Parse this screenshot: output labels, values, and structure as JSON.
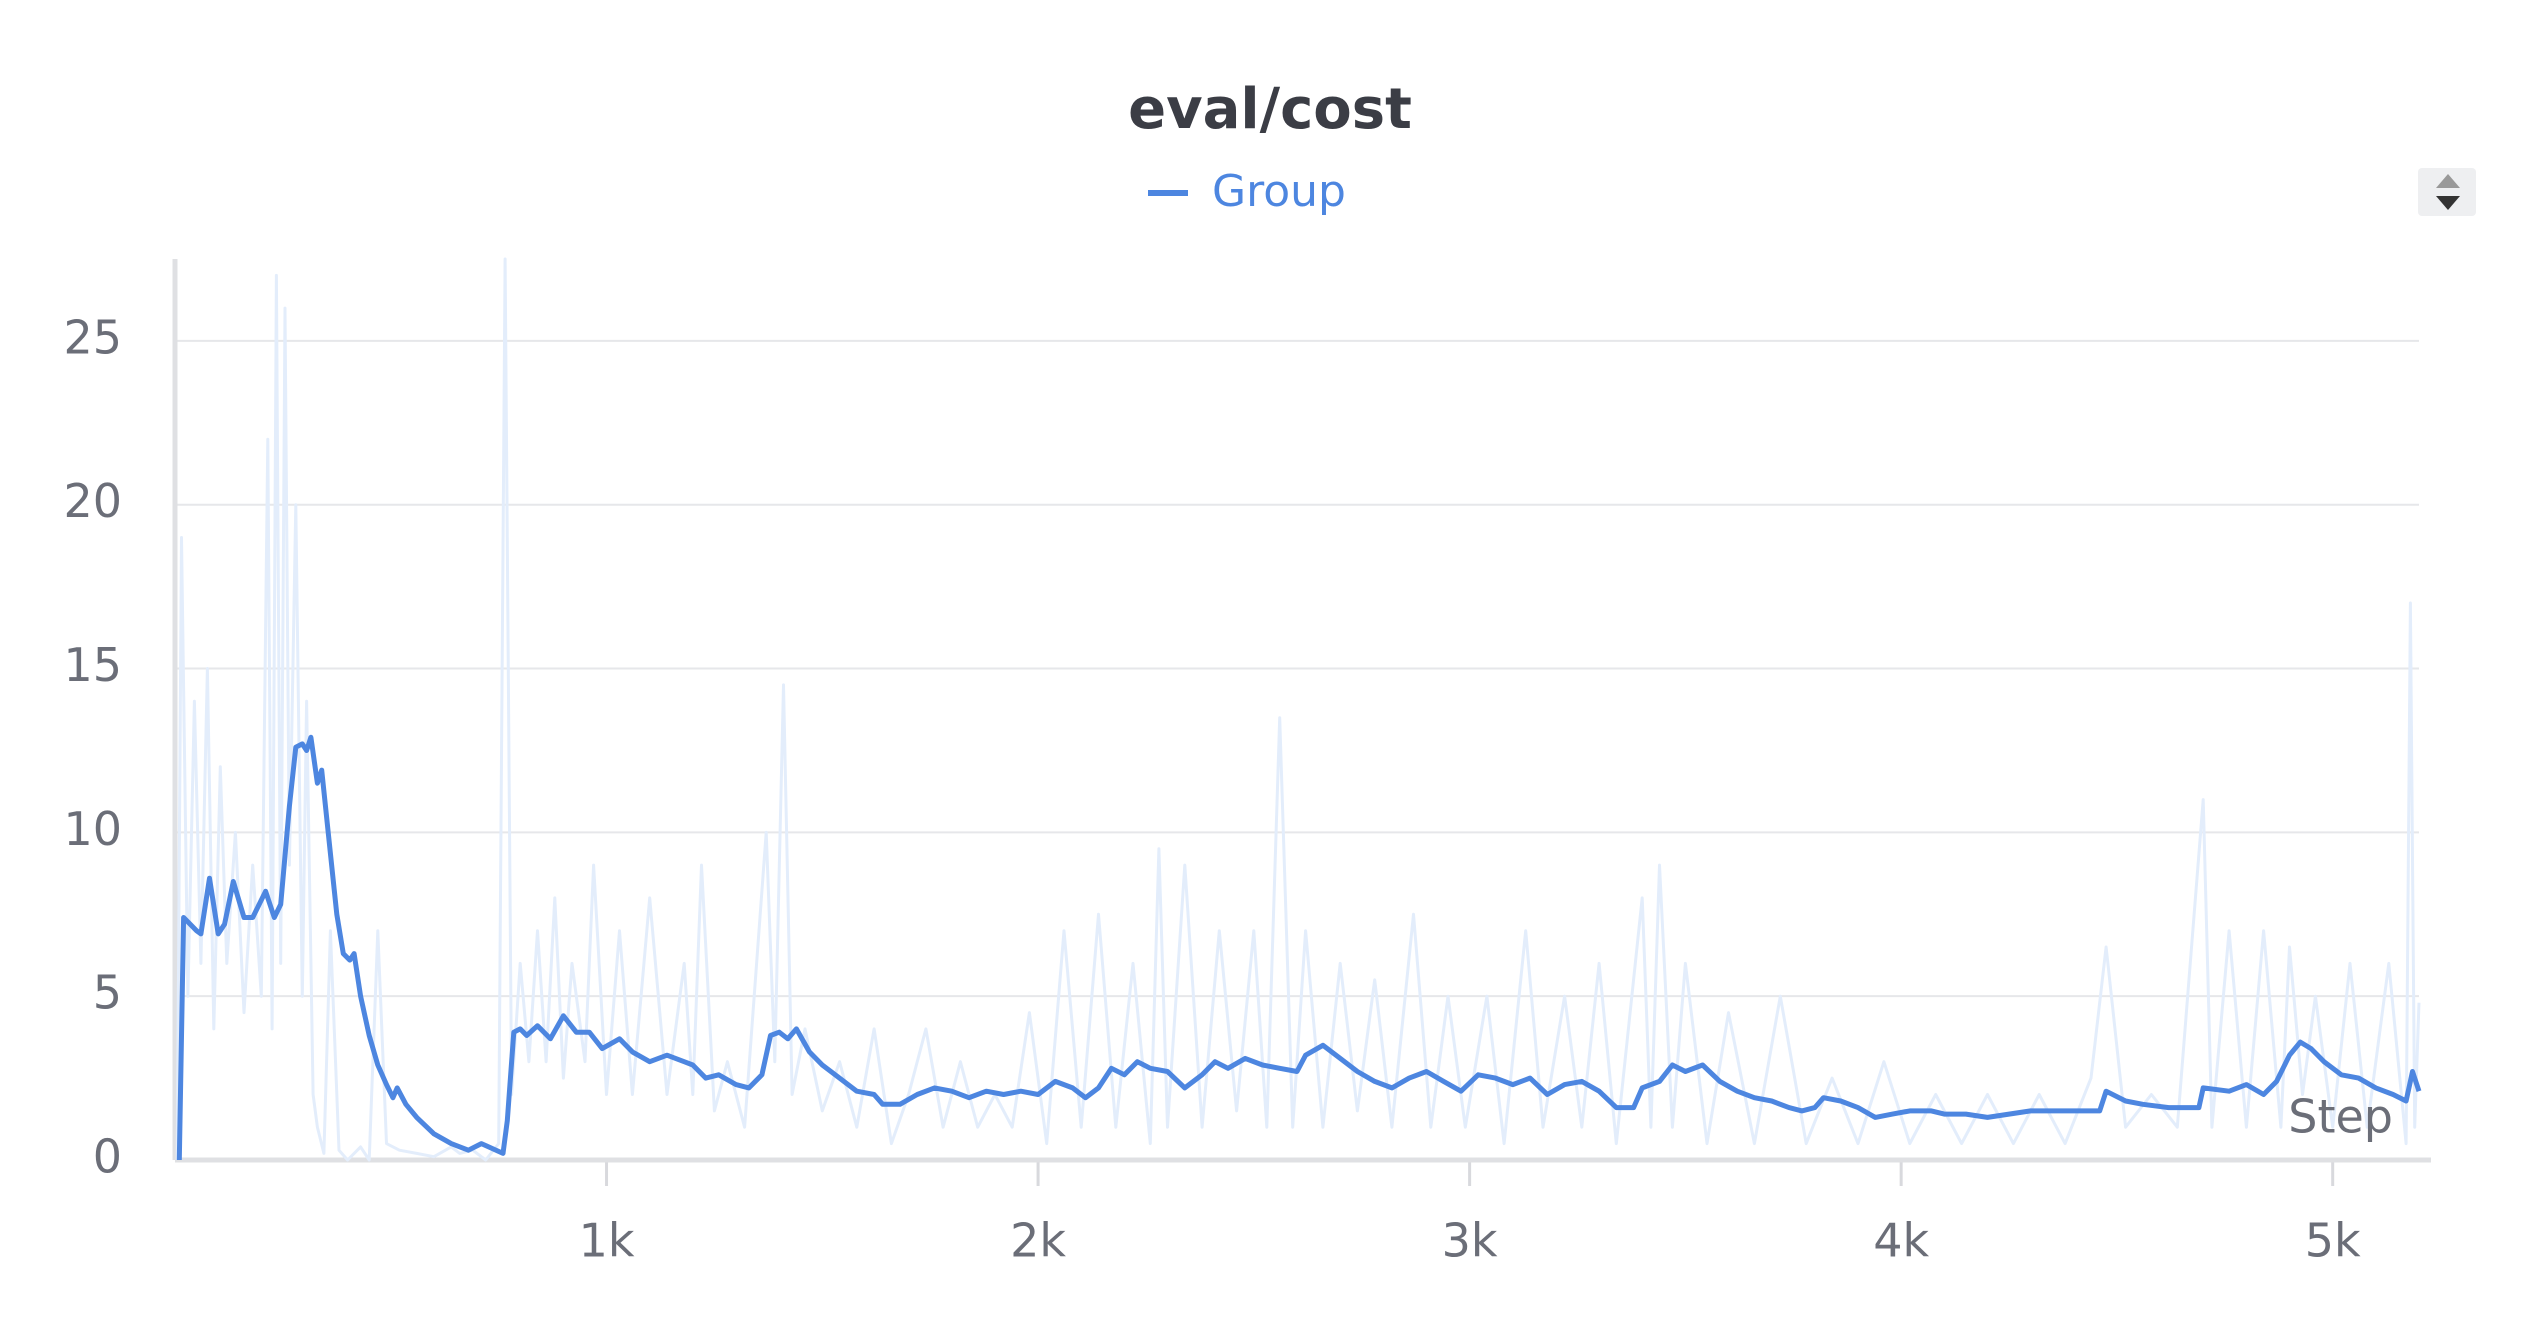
{
  "chart_data": {
    "type": "line",
    "title": "eval/cost",
    "xlabel": "Step",
    "xlim": [
      0,
      5200
    ],
    "ylim": [
      0,
      27.5
    ],
    "xticks": [
      {
        "value": 1000,
        "label": "1k"
      },
      {
        "value": 2000,
        "label": "2k"
      },
      {
        "value": 3000,
        "label": "3k"
      },
      {
        "value": 4000,
        "label": "4k"
      },
      {
        "value": 5000,
        "label": "5k"
      }
    ],
    "yticks": [
      0,
      5,
      10,
      15,
      20,
      25
    ],
    "grid": true,
    "series": [
      {
        "color": "#e3edfb",
        "x": [
          5,
          15,
          30,
          45,
          60,
          75,
          90,
          105,
          120,
          140,
          160,
          180,
          200,
          215,
          225,
          235,
          245,
          255,
          265,
          280,
          295,
          305,
          320,
          330,
          345,
          360,
          380,
          400,
          430,
          450,
          470,
          490,
          520,
          560,
          600,
          640,
          660,
          690,
          720,
          750,
          765,
          780,
          800,
          820,
          840,
          860,
          880,
          900,
          920,
          950,
          970,
          1000,
          1030,
          1060,
          1100,
          1140,
          1180,
          1200,
          1220,
          1250,
          1280,
          1320,
          1370,
          1390,
          1410,
          1430,
          1460,
          1500,
          1540,
          1580,
          1620,
          1660,
          1700,
          1740,
          1780,
          1820,
          1860,
          1900,
          1940,
          1980,
          2020,
          2060,
          2100,
          2140,
          2180,
          2220,
          2260,
          2280,
          2300,
          2340,
          2380,
          2420,
          2460,
          2500,
          2530,
          2560,
          2590,
          2620,
          2660,
          2700,
          2740,
          2780,
          2820,
          2870,
          2910,
          2950,
          2990,
          3040,
          3080,
          3130,
          3170,
          3220,
          3260,
          3300,
          3340,
          3400,
          3420,
          3440,
          3470,
          3500,
          3550,
          3600,
          3660,
          3720,
          3780,
          3840,
          3900,
          3960,
          4020,
          4080,
          4140,
          4200,
          4260,
          4320,
          4380,
          4440,
          4475,
          4520,
          4580,
          4640,
          4700,
          4720,
          4760,
          4800,
          4840,
          4880,
          4900,
          4930,
          4960,
          5000,
          5040,
          5080,
          5130,
          5170,
          5180,
          5190,
          5200
        ],
        "values": [
          0,
          19,
          5,
          14,
          6,
          15,
          4,
          12,
          6,
          10,
          4.5,
          9,
          5,
          22,
          4,
          27,
          6,
          26,
          9,
          20,
          5,
          14,
          2,
          1,
          0.2,
          7,
          0.3,
          0,
          0.4,
          0,
          7,
          0.5,
          0.3,
          0.2,
          0.1,
          0.4,
          0.2,
          0.3,
          0,
          0.5,
          27.5,
          2,
          6,
          3,
          7,
          3,
          8,
          2.5,
          6,
          3,
          9,
          2,
          7,
          2,
          8,
          2,
          6,
          2,
          9,
          1.5,
          3,
          1,
          10,
          3,
          14.5,
          2,
          4,
          1.5,
          3,
          1,
          4,
          0.5,
          2,
          4,
          1,
          3,
          1,
          2,
          1,
          4.5,
          0.5,
          7,
          1,
          7.5,
          1,
          6,
          0.5,
          9.5,
          1,
          9,
          1,
          7,
          1.5,
          7,
          1,
          13.5,
          1,
          7,
          1,
          6,
          1.5,
          5.5,
          1,
          7.5,
          1,
          5,
          1,
          5,
          0.5,
          7,
          1,
          5,
          1,
          6,
          0.5,
          8,
          1,
          9,
          1,
          6,
          0.5,
          4.5,
          0.5,
          5,
          0.5,
          2.5,
          0.5,
          3,
          0.5,
          2,
          0.5,
          2,
          0.5,
          2,
          0.5,
          2.5,
          6.5,
          1,
          2,
          1,
          11,
          1,
          7,
          1,
          7,
          1,
          6.5,
          2,
          5,
          1,
          6,
          1,
          6,
          0.5,
          17,
          1,
          4.8
        ]
      },
      {
        "name": "Group",
        "color": "#4d86e0",
        "x": [
          10,
          20,
          50,
          60,
          80,
          100,
          115,
          135,
          160,
          180,
          210,
          230,
          245,
          265,
          280,
          295,
          305,
          315,
          330,
          340,
          355,
          375,
          390,
          405,
          415,
          430,
          450,
          470,
          490,
          505,
          515,
          535,
          560,
          600,
          640,
          680,
          710,
          760,
          770,
          785,
          800,
          815,
          840,
          870,
          900,
          930,
          960,
          990,
          1030,
          1060,
          1100,
          1140,
          1180,
          1200,
          1230,
          1260,
          1300,
          1330,
          1360,
          1380,
          1400,
          1420,
          1440,
          1470,
          1500,
          1540,
          1580,
          1620,
          1640,
          1680,
          1720,
          1760,
          1800,
          1840,
          1880,
          1920,
          1960,
          2000,
          2040,
          2080,
          2110,
          2140,
          2170,
          2200,
          2230,
          2260,
          2300,
          2340,
          2380,
          2410,
          2440,
          2480,
          2520,
          2560,
          2600,
          2620,
          2660,
          2700,
          2740,
          2780,
          2820,
          2860,
          2900,
          2940,
          2980,
          3020,
          3060,
          3100,
          3140,
          3180,
          3220,
          3260,
          3300,
          3340,
          3380,
          3400,
          3440,
          3470,
          3500,
          3540,
          3580,
          3620,
          3660,
          3700,
          3740,
          3770,
          3800,
          3820,
          3860,
          3900,
          3940,
          3980,
          4020,
          4070,
          4100,
          4150,
          4200,
          4250,
          4300,
          4350,
          4400,
          4460,
          4475,
          4520,
          4560,
          4620,
          4690,
          4700,
          4760,
          4800,
          4840,
          4870,
          4900,
          4925,
          4950,
          4980,
          5020,
          5060,
          5100,
          5140,
          5170,
          5185,
          5200
        ],
        "values": [
          0,
          7.4,
          7,
          6.9,
          8.6,
          6.9,
          7.2,
          8.5,
          7.4,
          7.4,
          8.2,
          7.4,
          7.8,
          10.8,
          12.6,
          12.7,
          12.5,
          12.9,
          11.5,
          11.9,
          10,
          7.5,
          6.3,
          6.1,
          6.3,
          5,
          3.8,
          2.9,
          2.3,
          1.9,
          2.2,
          1.7,
          1.3,
          0.8,
          0.5,
          0.3,
          0.5,
          0.2,
          1.2,
          3.9,
          4,
          3.8,
          4.1,
          3.7,
          4.4,
          3.9,
          3.9,
          3.4,
          3.7,
          3.3,
          3,
          3.2,
          3,
          2.9,
          2.5,
          2.6,
          2.3,
          2.2,
          2.6,
          3.8,
          3.9,
          3.7,
          4,
          3.3,
          2.9,
          2.5,
          2.1,
          2,
          1.7,
          1.7,
          2,
          2.2,
          2.1,
          1.9,
          2.1,
          2,
          2.1,
          2,
          2.4,
          2.2,
          1.9,
          2.2,
          2.8,
          2.6,
          3,
          2.8,
          2.7,
          2.2,
          2.6,
          3,
          2.8,
          3.1,
          2.9,
          2.8,
          2.7,
          3.2,
          3.5,
          3.1,
          2.7,
          2.4,
          2.2,
          2.5,
          2.7,
          2.4,
          2.1,
          2.6,
          2.5,
          2.3,
          2.5,
          2,
          2.3,
          2.4,
          2.1,
          1.6,
          1.6,
          2.2,
          2.4,
          2.9,
          2.7,
          2.9,
          2.4,
          2.1,
          1.9,
          1.8,
          1.6,
          1.5,
          1.6,
          1.9,
          1.8,
          1.6,
          1.3,
          1.4,
          1.5,
          1.5,
          1.4,
          1.4,
          1.3,
          1.4,
          1.5,
          1.5,
          1.5,
          1.5,
          2.1,
          1.8,
          1.7,
          1.6,
          1.6,
          2.2,
          2.1,
          2.3,
          2,
          2.4,
          3.2,
          3.6,
          3.4,
          3,
          2.6,
          2.5,
          2.2,
          2,
          1.8,
          2.7,
          2.1
        ]
      }
    ]
  }
}
